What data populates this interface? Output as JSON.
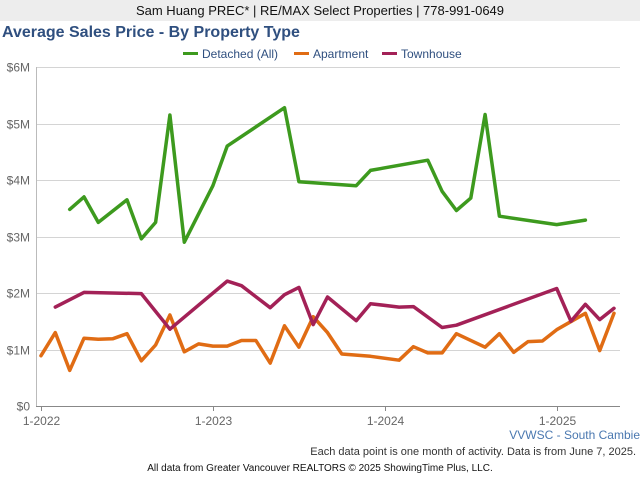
{
  "header": {
    "agent": "Sam Huang PREC* | RE/MAX Select Properties | 778-991-0649"
  },
  "footer": {
    "region": "VVWSC - South Cambie",
    "note": "Each data point is one month of activity. Data is from June 7, 2025.",
    "source": "All data from Greater Vancouver REALTORS © 2025 ShowingTime Plus, LLC."
  },
  "chart_data": {
    "type": "line",
    "title": "Average Sales Price - By Property Type",
    "xlabel": "",
    "ylabel": "",
    "ylim": [
      0,
      6000000
    ],
    "y_ticks": [
      {
        "value": 0,
        "label": "$0"
      },
      {
        "value": 1000000,
        "label": "$1M"
      },
      {
        "value": 2000000,
        "label": "$2M"
      },
      {
        "value": 3000000,
        "label": "$3M"
      },
      {
        "value": 4000000,
        "label": "$4M"
      },
      {
        "value": 5000000,
        "label": "$5M"
      },
      {
        "value": 6000000,
        "label": "$6M"
      }
    ],
    "x_range": [
      "2022-01",
      "2025-05"
    ],
    "x_ticks": [
      {
        "value": "2022-01",
        "label": "1-2022"
      },
      {
        "value": "2023-01",
        "label": "1-2023"
      },
      {
        "value": "2024-01",
        "label": "1-2024"
      },
      {
        "value": "2025-01",
        "label": "1-2025"
      }
    ],
    "grid": "horizontal",
    "legend": "top-center",
    "series": [
      {
        "name": "Detached (All)",
        "color": "#3d9a1e",
        "points": [
          [
            "2022-03",
            3480000
          ],
          [
            "2022-04",
            3700000
          ],
          [
            "2022-05",
            3250000
          ],
          [
            "2022-07",
            3650000
          ],
          [
            "2022-08",
            2960000
          ],
          [
            "2022-09",
            3250000
          ],
          [
            "2022-10",
            5150000
          ],
          [
            "2022-11",
            2900000
          ],
          [
            "2023-01",
            3900000
          ],
          [
            "2023-02",
            4600000
          ],
          [
            "2023-06",
            5280000
          ],
          [
            "2023-07",
            3970000
          ],
          [
            "2023-11",
            3900000
          ],
          [
            "2023-12",
            4170000
          ],
          [
            "2024-04",
            4350000
          ],
          [
            "2024-05",
            3800000
          ],
          [
            "2024-06",
            3460000
          ],
          [
            "2024-07",
            3680000
          ],
          [
            "2024-08",
            5160000
          ],
          [
            "2024-09",
            3360000
          ],
          [
            "2025-01",
            3210000
          ],
          [
            "2025-03",
            3290000
          ]
        ]
      },
      {
        "name": "Apartment",
        "color": "#e06c14",
        "points": [
          [
            "2022-01",
            890000
          ],
          [
            "2022-02",
            1300000
          ],
          [
            "2022-03",
            630000
          ],
          [
            "2022-04",
            1200000
          ],
          [
            "2022-05",
            1180000
          ],
          [
            "2022-06",
            1190000
          ],
          [
            "2022-07",
            1280000
          ],
          [
            "2022-08",
            800000
          ],
          [
            "2022-09",
            1080000
          ],
          [
            "2022-10",
            1610000
          ],
          [
            "2022-11",
            960000
          ],
          [
            "2022-12",
            1100000
          ],
          [
            "2023-01",
            1060000
          ],
          [
            "2023-02",
            1060000
          ],
          [
            "2023-03",
            1160000
          ],
          [
            "2023-04",
            1160000
          ],
          [
            "2023-05",
            760000
          ],
          [
            "2023-06",
            1420000
          ],
          [
            "2023-07",
            1040000
          ],
          [
            "2023-08",
            1580000
          ],
          [
            "2023-09",
            1300000
          ],
          [
            "2023-10",
            920000
          ],
          [
            "2023-12",
            880000
          ],
          [
            "2024-02",
            810000
          ],
          [
            "2024-03",
            1050000
          ],
          [
            "2024-04",
            940000
          ],
          [
            "2024-05",
            940000
          ],
          [
            "2024-06",
            1280000
          ],
          [
            "2024-08",
            1040000
          ],
          [
            "2024-09",
            1280000
          ],
          [
            "2024-10",
            950000
          ],
          [
            "2024-11",
            1140000
          ],
          [
            "2024-12",
            1150000
          ],
          [
            "2025-01",
            1350000
          ],
          [
            "2025-03",
            1640000
          ],
          [
            "2025-04",
            980000
          ],
          [
            "2025-05",
            1640000
          ]
        ]
      },
      {
        "name": "Townhouse",
        "color": "#a32157",
        "points": [
          [
            "2022-02",
            1750000
          ],
          [
            "2022-04",
            2010000
          ],
          [
            "2022-08",
            1990000
          ],
          [
            "2022-10",
            1360000
          ],
          [
            "2023-02",
            2210000
          ],
          [
            "2023-03",
            2130000
          ],
          [
            "2023-05",
            1740000
          ],
          [
            "2023-06",
            1970000
          ],
          [
            "2023-07",
            2100000
          ],
          [
            "2023-08",
            1440000
          ],
          [
            "2023-09",
            1930000
          ],
          [
            "2023-11",
            1510000
          ],
          [
            "2023-12",
            1810000
          ],
          [
            "2024-02",
            1750000
          ],
          [
            "2024-03",
            1760000
          ],
          [
            "2024-05",
            1390000
          ],
          [
            "2024-06",
            1430000
          ],
          [
            "2025-01",
            2080000
          ],
          [
            "2025-02",
            1500000
          ],
          [
            "2025-03",
            1800000
          ],
          [
            "2025-04",
            1530000
          ],
          [
            "2025-05",
            1730000
          ]
        ]
      }
    ]
  }
}
